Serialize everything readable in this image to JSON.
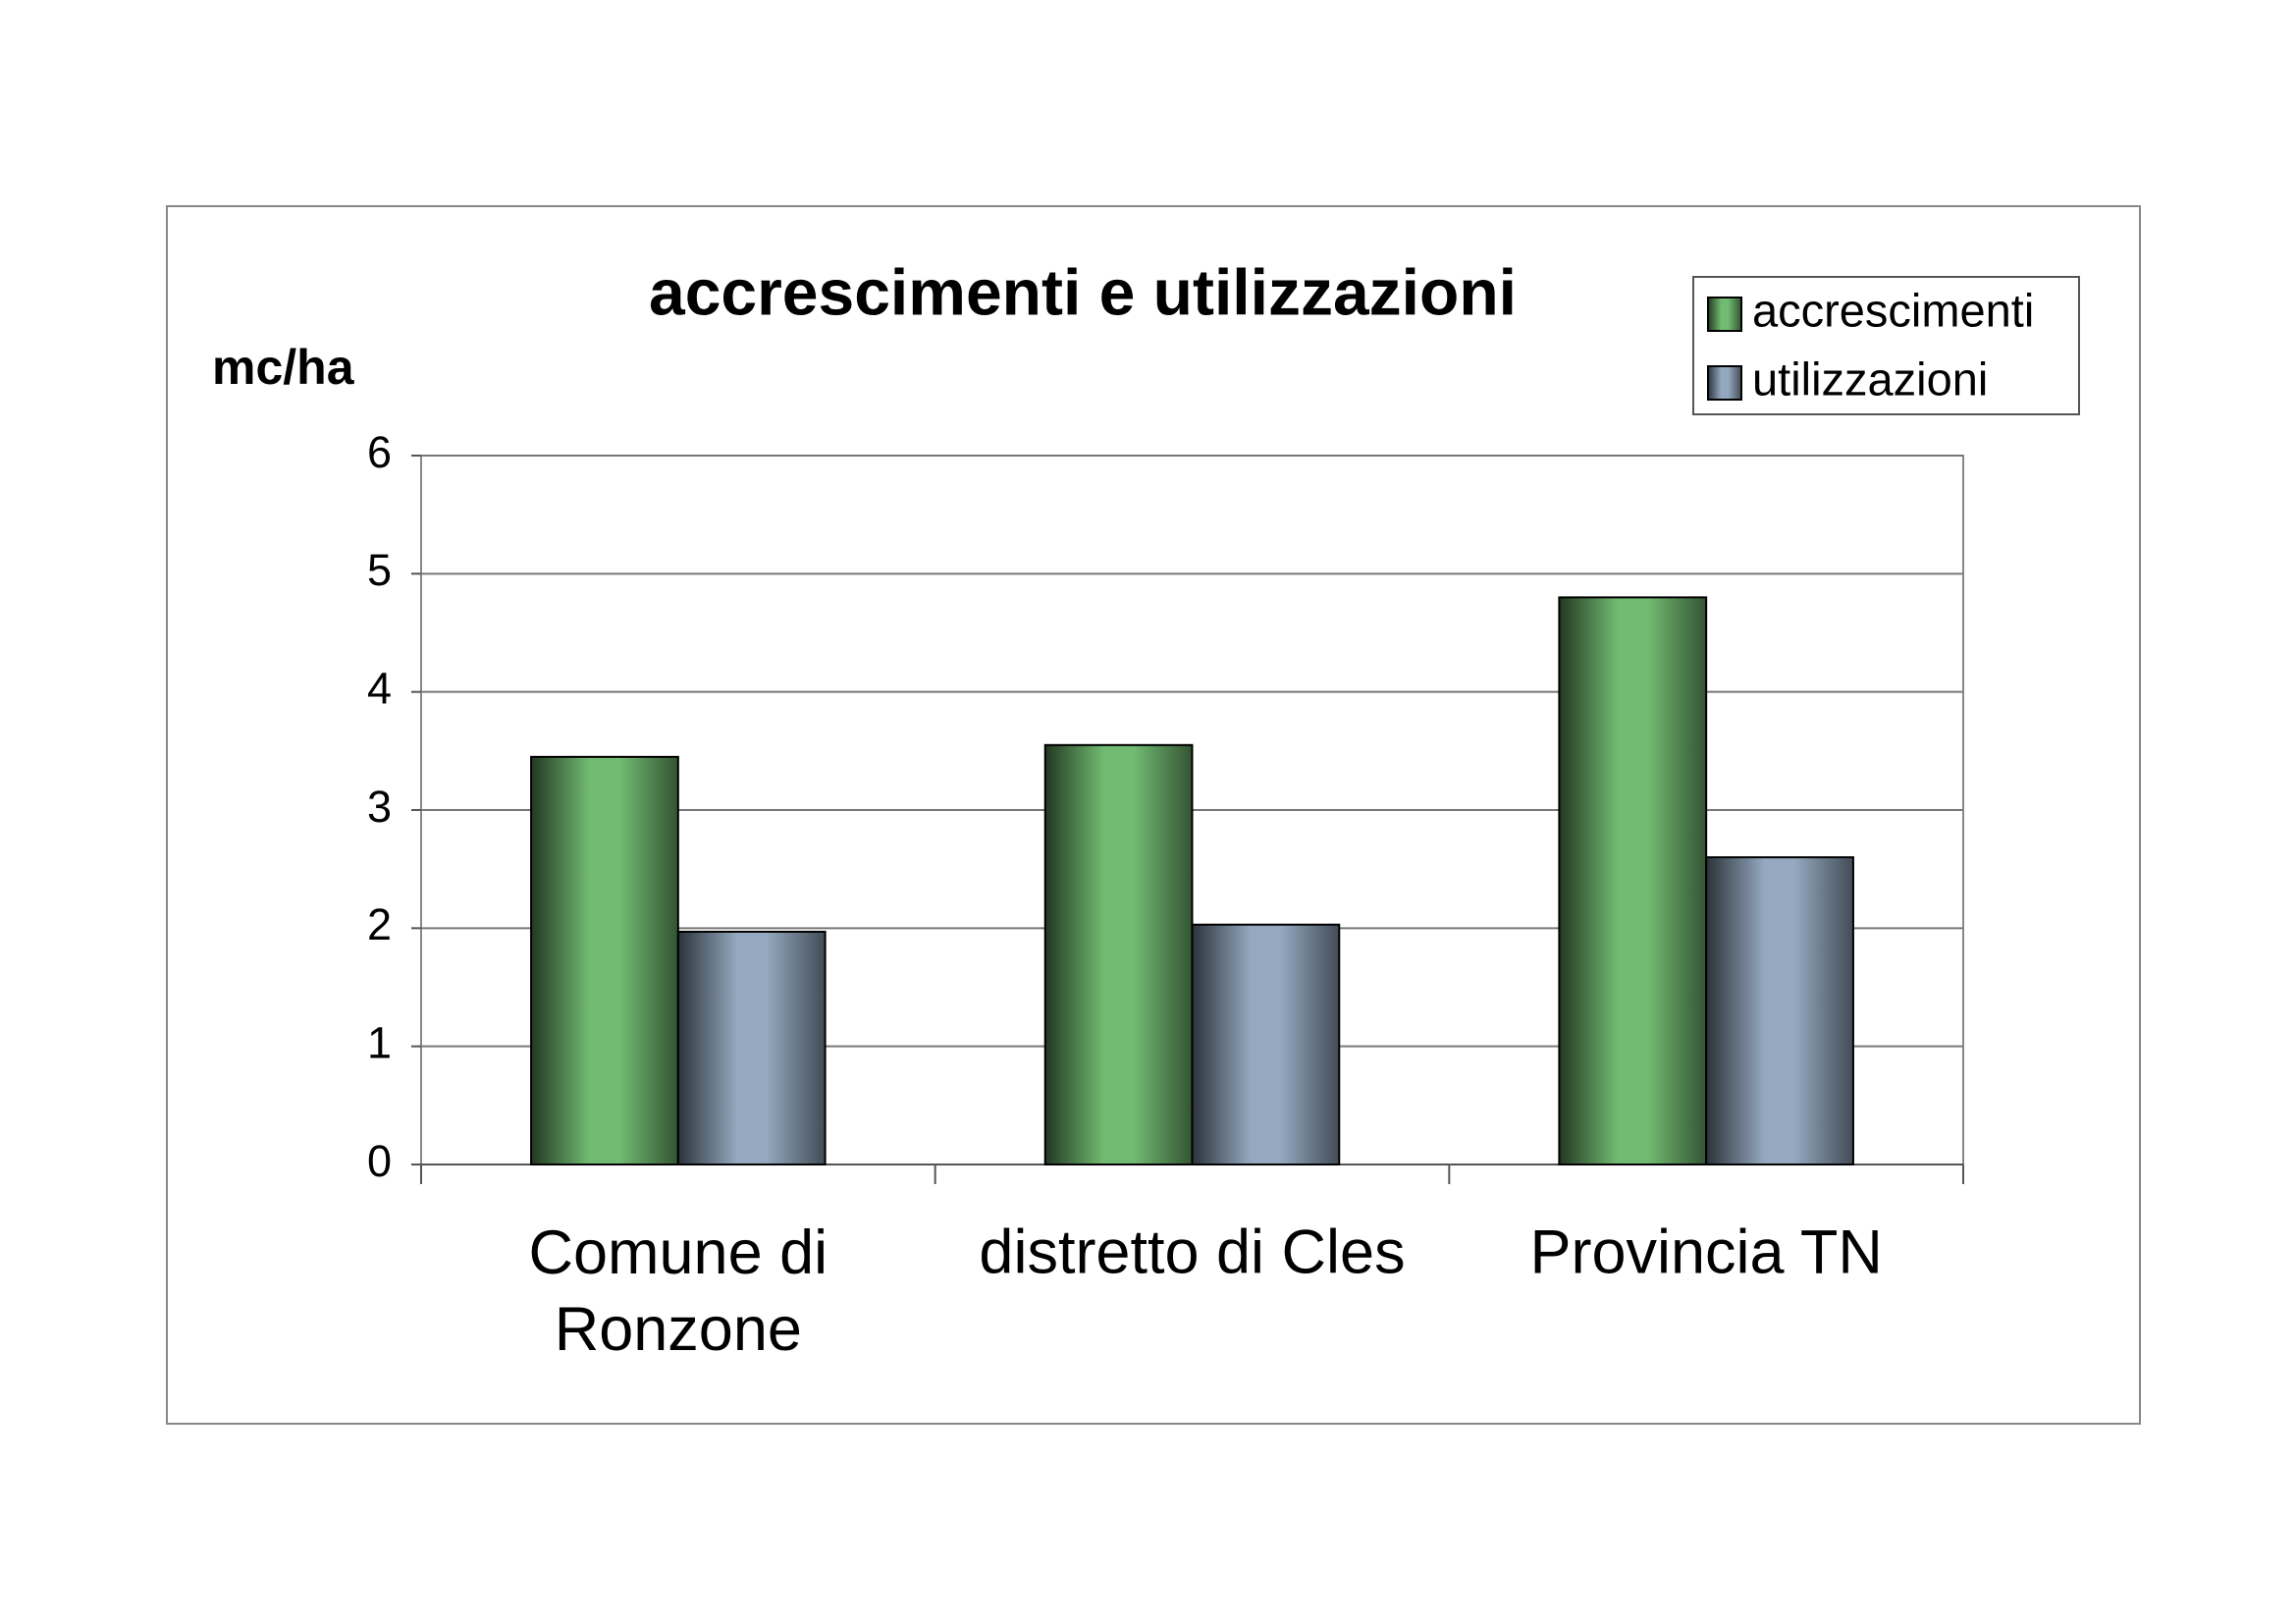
{
  "chart_data": {
    "type": "bar",
    "title": "accrescimenti e utilizzazioni",
    "y_label": "mc/ha",
    "categories": [
      "Comune di Ronzone",
      "distretto di Cles",
      "Provincia TN"
    ],
    "series": [
      {
        "name": "accrescimenti",
        "color": "#72bb72",
        "values": [
          3.45,
          3.55,
          4.8
        ]
      },
      {
        "name": "utilizzazioni",
        "color": "#94a9c0",
        "values": [
          1.97,
          2.03,
          2.6
        ]
      }
    ],
    "ylim": [
      0,
      6
    ],
    "yticks": [
      0,
      1,
      2,
      3,
      4,
      5,
      6
    ],
    "grid": true,
    "legend": "top-right"
  }
}
